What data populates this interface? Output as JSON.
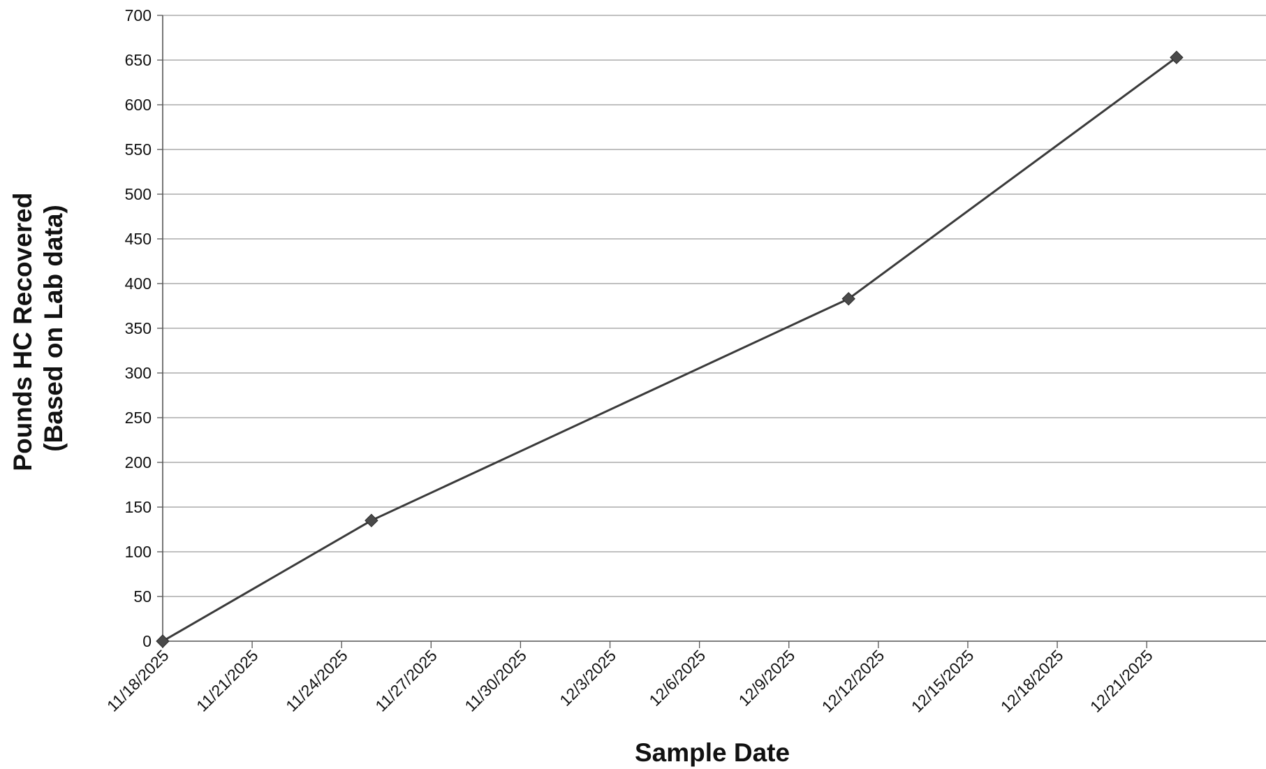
{
  "chart_data": {
    "type": "line",
    "title": "",
    "xlabel": "Sample Date",
    "ylabel_lines": [
      "Pounds HC Recovered",
      "(Based on Lab data)"
    ],
    "x_axis_type": "date",
    "x_ticks": [
      "11/18/2025",
      "11/21/2025",
      "11/24/2025",
      "11/27/2025",
      "11/30/2025",
      "12/3/2025",
      "12/6/2025",
      "12/9/2025",
      "12/12/2025",
      "12/15/2025",
      "12/18/2025",
      "12/21/2025"
    ],
    "xlim": [
      "2025-11-18",
      "2025-12-25"
    ],
    "ylim": [
      0,
      700
    ],
    "y_ticks": [
      0,
      50,
      100,
      150,
      200,
      250,
      300,
      350,
      400,
      450,
      500,
      550,
      600,
      650,
      700
    ],
    "grid": "horizontal",
    "legend": "none",
    "series": [
      {
        "x": [
          "2025-11-18",
          "2025-11-25",
          "2025-12-11",
          "2025-12-22"
        ],
        "y": [
          0,
          135,
          383,
          653
        ]
      }
    ],
    "colors": {
      "line": "#3a3a3a",
      "marker": "#4a4a4a",
      "grid": "#9a9a9a",
      "axis": "#555555"
    }
  }
}
